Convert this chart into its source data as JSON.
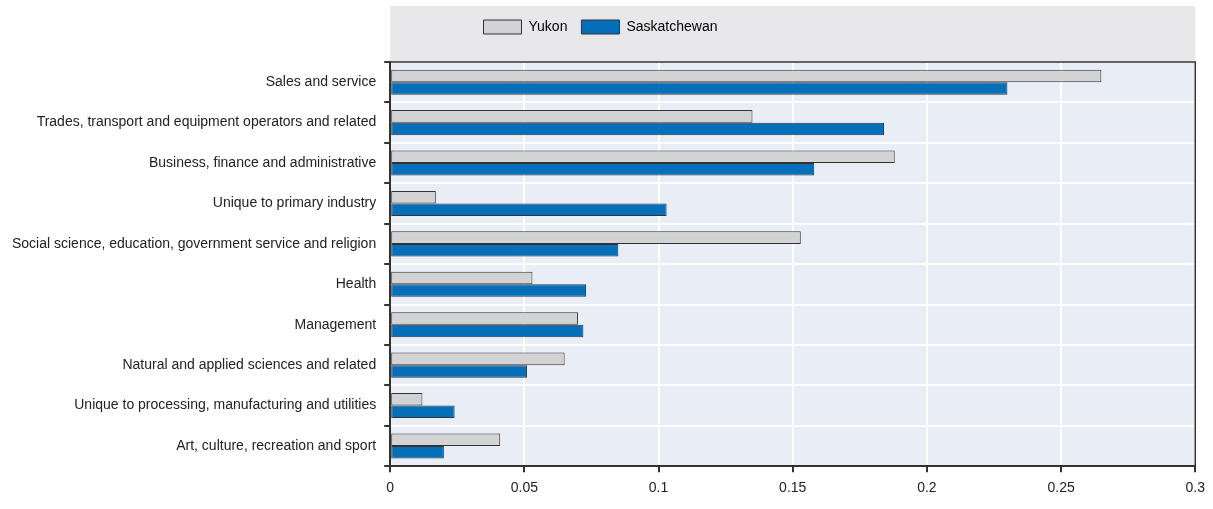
{
  "chart_data": {
    "type": "bar",
    "orientation": "horizontal",
    "categories": [
      "Sales and service",
      "Trades, transport and equipment operators and related",
      "Business, finance and administrative",
      "Unique to primary industry",
      "Social science, education, government service and religion",
      "Health",
      "Management",
      "Natural and applied sciences and related",
      "Unique to processing, manufacturing and utilities",
      "Art, culture, recreation and sport"
    ],
    "series": [
      {
        "name": "Yukon",
        "color": "#d3d3d5",
        "values": [
          0.265,
          0.135,
          0.188,
          0.017,
          0.153,
          0.053,
          0.07,
          0.065,
          0.012,
          0.041
        ]
      },
      {
        "name": "Saskatchewan",
        "color": "#0570b9",
        "values": [
          0.23,
          0.184,
          0.158,
          0.103,
          0.085,
          0.073,
          0.072,
          0.051,
          0.024,
          0.02
        ]
      }
    ],
    "xlim": [
      0,
      0.3
    ],
    "xticks": [
      0,
      0.05,
      0.1,
      0.15,
      0.2,
      0.25,
      0.3
    ],
    "grid": true,
    "legend": "top"
  }
}
